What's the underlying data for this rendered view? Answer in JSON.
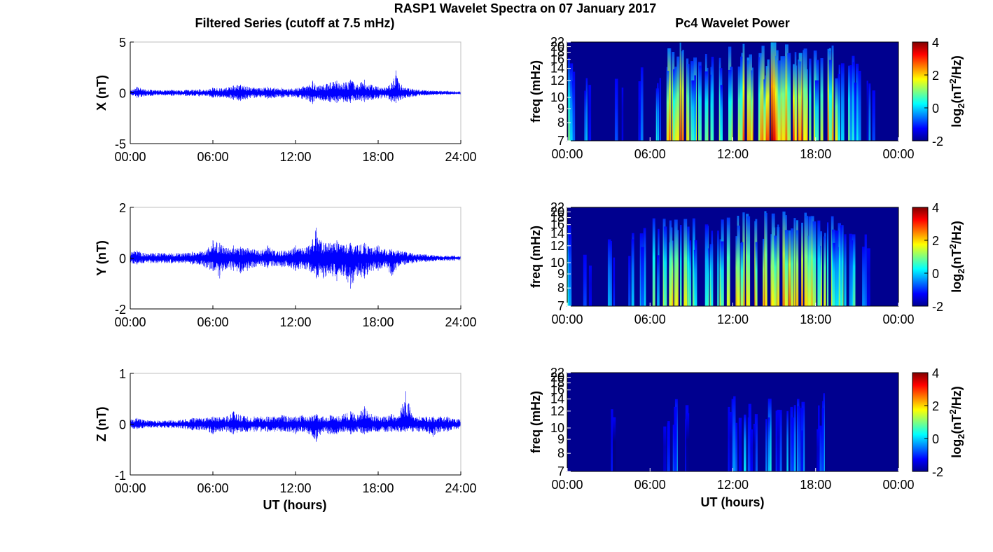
{
  "figure": {
    "title": "RASP1 Wavelet Spectra on 07 January 2017",
    "left_title": "Filtered Series (cutoff at 7.5 mHz)",
    "right_title": "Pc4 Wavelet Power",
    "x_label": "UT (hours)"
  },
  "colors": {
    "series": "#0000ff",
    "axis": "#000000",
    "box": "#bfbfbf",
    "spectrum_background": "#00008f"
  },
  "chart_data": [
    {
      "type": "line",
      "id": "x_series",
      "ylabel": "X (nT)",
      "ylim": [
        -5,
        5
      ],
      "yticks": [
        "5",
        "0",
        "-5"
      ],
      "ytick_values": [
        5,
        0,
        -5
      ],
      "xlim": [
        0,
        24
      ],
      "xtick_labels": [
        "00:00",
        "06:00",
        "12:00",
        "18:00",
        "24:00"
      ],
      "xtick_values": [
        0,
        6,
        12,
        18,
        24
      ],
      "grid": false,
      "x": [
        0,
        0.5,
        1,
        1.5,
        2,
        2.5,
        3,
        3.5,
        4,
        4.5,
        5,
        5.5,
        6,
        6.5,
        7,
        7.5,
        8,
        8.5,
        9,
        9.5,
        10,
        10.5,
        11,
        11.5,
        12,
        12.5,
        13,
        13.25,
        13.5,
        14,
        14.5,
        15,
        15.5,
        16,
        16.5,
        17,
        17.5,
        18,
        18.5,
        19,
        19.3,
        19.5,
        20,
        20.5,
        21,
        21.5,
        22,
        22.5,
        23,
        23.5,
        24
      ],
      "y_max": [
        0.3,
        0.6,
        0.35,
        0.3,
        0.25,
        0.25,
        0.3,
        0.25,
        0.3,
        0.3,
        0.35,
        0.3,
        0.5,
        0.45,
        0.5,
        0.7,
        0.8,
        0.6,
        0.5,
        0.45,
        0.6,
        0.5,
        0.5,
        0.4,
        0.45,
        0.6,
        0.8,
        1.2,
        0.6,
        0.8,
        1.0,
        1.2,
        1.0,
        1.3,
        0.8,
        1.3,
        0.8,
        0.6,
        0.5,
        1.0,
        2.2,
        1.0,
        0.5,
        0.4,
        0.3,
        0.25,
        0.2,
        0.2,
        0.2,
        0.15,
        0.15
      ],
      "y_min": [
        -0.3,
        -0.5,
        -0.35,
        -0.3,
        -0.25,
        -0.25,
        -0.3,
        -0.25,
        -0.3,
        -0.3,
        -0.35,
        -0.3,
        -0.5,
        -0.45,
        -0.5,
        -0.7,
        -0.8,
        -0.6,
        -0.5,
        -0.45,
        -0.6,
        -0.5,
        -0.5,
        -0.4,
        -0.45,
        -0.6,
        -0.8,
        -1.1,
        -0.6,
        -0.8,
        -0.9,
        -1.0,
        -0.9,
        -1.0,
        -0.7,
        -0.9,
        -0.7,
        -0.6,
        -0.5,
        -0.9,
        -1.0,
        -0.8,
        -0.5,
        -0.4,
        -0.3,
        -0.25,
        -0.2,
        -0.2,
        -0.2,
        -0.15,
        -0.15
      ]
    },
    {
      "type": "line",
      "id": "y_series",
      "ylabel": "Y (nT)",
      "ylim": [
        -2,
        2
      ],
      "yticks": [
        "2",
        "0",
        "-2"
      ],
      "ytick_values": [
        2,
        0,
        -2
      ],
      "xlim": [
        0,
        24
      ],
      "xtick_labels": [
        "00:00",
        "06:00",
        "12:00",
        "18:00",
        "24:00"
      ],
      "xtick_values": [
        0,
        6,
        12,
        18,
        24
      ],
      "grid": false,
      "x": [
        0,
        0.5,
        1,
        1.5,
        2,
        2.5,
        3,
        3.5,
        4,
        4.5,
        5,
        5.5,
        6,
        6.5,
        7,
        7.5,
        8,
        8.5,
        9,
        9.5,
        10,
        10.5,
        11,
        11.5,
        12,
        12.5,
        13,
        13.5,
        14,
        14.5,
        15,
        15.5,
        16,
        16.5,
        17,
        17.5,
        18,
        18.5,
        19,
        19.5,
        20,
        20.5,
        21,
        21.5,
        22,
        22.5,
        23,
        23.5,
        24
      ],
      "y_max": [
        0.25,
        0.3,
        0.2,
        0.2,
        0.2,
        0.2,
        0.2,
        0.2,
        0.2,
        0.25,
        0.25,
        0.3,
        0.7,
        0.6,
        0.4,
        0.5,
        0.45,
        0.4,
        0.35,
        0.3,
        0.5,
        0.3,
        0.3,
        0.3,
        0.5,
        0.4,
        0.5,
        1.2,
        0.6,
        0.6,
        0.7,
        0.5,
        0.6,
        0.5,
        0.6,
        0.4,
        0.5,
        0.35,
        0.35,
        0.3,
        0.25,
        0.2,
        0.15,
        0.15,
        0.12,
        0.1,
        0.1,
        0.1,
        0.08
      ],
      "y_min": [
        -0.2,
        -0.25,
        -0.2,
        -0.2,
        -0.2,
        -0.2,
        -0.2,
        -0.2,
        -0.2,
        -0.25,
        -0.25,
        -0.4,
        -0.5,
        -0.8,
        -0.4,
        -0.5,
        -0.6,
        -0.5,
        -0.35,
        -0.3,
        -0.4,
        -0.3,
        -0.35,
        -0.35,
        -0.5,
        -0.4,
        -0.5,
        -0.8,
        -0.8,
        -0.6,
        -0.9,
        -0.7,
        -1.2,
        -0.7,
        -0.8,
        -0.5,
        -0.5,
        -0.35,
        -0.7,
        -0.3,
        -0.25,
        -0.2,
        -0.15,
        -0.15,
        -0.12,
        -0.1,
        -0.1,
        -0.1,
        -0.08
      ]
    },
    {
      "type": "line",
      "id": "z_series",
      "ylabel": "Z (nT)",
      "ylim": [
        -1,
        1
      ],
      "yticks": [
        "1",
        "0",
        "-1"
      ],
      "ytick_values": [
        1,
        0,
        -1
      ],
      "xlim": [
        0,
        24
      ],
      "xtick_labels": [
        "00:00",
        "06:00",
        "12:00",
        "18:00",
        "24:00"
      ],
      "xtick_values": [
        0,
        6,
        12,
        18,
        24
      ],
      "grid": false,
      "x": [
        0,
        0.5,
        1,
        1.5,
        2,
        2.5,
        3,
        3.5,
        4,
        4.5,
        5,
        5.5,
        6,
        6.5,
        7,
        7.5,
        8,
        8.5,
        9,
        9.5,
        10,
        10.5,
        11,
        11.5,
        12,
        12.5,
        13,
        13.5,
        14,
        14.5,
        15,
        15.5,
        16,
        16.5,
        17,
        17.5,
        18,
        18.5,
        19,
        19.5,
        20,
        20.5,
        21,
        21.5,
        22,
        22.5,
        23,
        23.5,
        24
      ],
      "y_max": [
        0.1,
        0.12,
        0.08,
        0.07,
        0.07,
        0.07,
        0.08,
        0.08,
        0.1,
        0.12,
        0.12,
        0.12,
        0.15,
        0.14,
        0.15,
        0.25,
        0.18,
        0.15,
        0.15,
        0.15,
        0.15,
        0.15,
        0.18,
        0.15,
        0.15,
        0.18,
        0.15,
        0.2,
        0.15,
        0.18,
        0.15,
        0.2,
        0.25,
        0.18,
        0.35,
        0.2,
        0.15,
        0.15,
        0.2,
        0.15,
        0.65,
        0.15,
        0.15,
        0.15,
        0.15,
        0.15,
        0.15,
        0.1,
        0.1
      ],
      "y_min": [
        -0.08,
        -0.1,
        -0.08,
        -0.07,
        -0.07,
        -0.07,
        -0.08,
        -0.08,
        -0.1,
        -0.12,
        -0.12,
        -0.12,
        -0.2,
        -0.14,
        -0.15,
        -0.2,
        -0.15,
        -0.15,
        -0.15,
        -0.15,
        -0.15,
        -0.15,
        -0.15,
        -0.15,
        -0.2,
        -0.15,
        -0.2,
        -0.35,
        -0.15,
        -0.2,
        -0.2,
        -0.15,
        -0.2,
        -0.15,
        -0.2,
        -0.15,
        -0.15,
        -0.15,
        -0.15,
        -0.15,
        -0.15,
        -0.15,
        -0.15,
        -0.15,
        -0.25,
        -0.15,
        -0.15,
        -0.1,
        -0.1
      ]
    },
    {
      "type": "heatmap",
      "id": "x_power",
      "ylabel": "freq (mHz)",
      "ytick_labels": [
        "22",
        "20",
        "18",
        "16",
        "14",
        "12",
        "10",
        "9",
        "8",
        "7"
      ],
      "ytick_values": [
        22,
        20,
        18,
        16,
        14,
        12,
        10,
        9,
        8,
        7
      ],
      "y_scale": "reciprocal (period)",
      "xlim": [
        0,
        24
      ],
      "xtick_labels": [
        "00:00",
        "06:00",
        "12:00",
        "18:00",
        "00:00"
      ],
      "xtick_values": [
        0,
        6,
        12,
        18,
        24
      ],
      "colorbar": {
        "label": "log2(nT^2/Hz)",
        "ticks": [
          "4",
          "2",
          "0",
          "-2"
        ],
        "tick_values": [
          4,
          2,
          0,
          -2
        ],
        "range": [
          -2,
          4
        ],
        "colormap": "jet"
      },
      "bursts": [
        {
          "t": 0.2,
          "power": 1.2
        },
        {
          "t": 0.5,
          "power": 0.6
        },
        {
          "t": 1.4,
          "power": 0.2
        },
        {
          "t": 3.8,
          "power": 0.0
        },
        {
          "t": 5.2,
          "power": -0.2
        },
        {
          "t": 6.6,
          "power": 0.6
        },
        {
          "t": 7.2,
          "power": 2.0
        },
        {
          "t": 7.5,
          "power": 3.0
        },
        {
          "t": 7.8,
          "power": 2.4
        },
        {
          "t": 8.2,
          "power": 3.2
        },
        {
          "t": 8.6,
          "power": 2.8
        },
        {
          "t": 9.1,
          "power": 1.8
        },
        {
          "t": 9.5,
          "power": 1.4
        },
        {
          "t": 10.1,
          "power": 2.0
        },
        {
          "t": 10.7,
          "power": 1.6
        },
        {
          "t": 11.2,
          "power": 1.5
        },
        {
          "t": 12.0,
          "power": 2.2
        },
        {
          "t": 12.7,
          "power": 2.4
        },
        {
          "t": 13.0,
          "power": 3.5
        },
        {
          "t": 13.3,
          "power": 3.0
        },
        {
          "t": 13.8,
          "power": 2.6
        },
        {
          "t": 14.2,
          "power": 2.5
        },
        {
          "t": 14.6,
          "power": 3.8
        },
        {
          "t": 15.0,
          "power": 3.6
        },
        {
          "t": 15.4,
          "power": 2.8
        },
        {
          "t": 15.9,
          "power": 2.6
        },
        {
          "t": 16.4,
          "power": 3.0
        },
        {
          "t": 16.8,
          "power": 3.4
        },
        {
          "t": 17.3,
          "power": 2.8
        },
        {
          "t": 17.8,
          "power": 2.2
        },
        {
          "t": 18.3,
          "power": 1.8
        },
        {
          "t": 18.8,
          "power": 3.3
        },
        {
          "t": 19.3,
          "power": 2.4
        },
        {
          "t": 19.8,
          "power": 1.6
        },
        {
          "t": 20.2,
          "power": 1.2
        },
        {
          "t": 20.6,
          "power": 1.0
        },
        {
          "t": 21.0,
          "power": 0.4
        },
        {
          "t": 22.0,
          "power": -0.2
        }
      ]
    },
    {
      "type": "heatmap",
      "id": "y_power",
      "ylabel": "freq (mHz)",
      "ytick_labels": [
        "22",
        "20",
        "18",
        "16",
        "14",
        "12",
        "10",
        "9",
        "8",
        "7"
      ],
      "ytick_values": [
        22,
        20,
        18,
        16,
        14,
        12,
        10,
        9,
        8,
        7
      ],
      "y_scale": "reciprocal (period)",
      "xlim": [
        0,
        24
      ],
      "xtick_labels": [
        "00:00",
        "06:00",
        "12:00",
        "18:00",
        "00:00"
      ],
      "xtick_values": [
        0,
        6,
        12,
        18,
        24
      ],
      "colorbar": {
        "label": "log2(nT^2/Hz)",
        "ticks": [
          "4",
          "2",
          "0",
          "-2"
        ],
        "tick_values": [
          4,
          2,
          0,
          -2
        ],
        "range": [
          -2,
          4
        ],
        "colormap": "jet"
      },
      "bursts": [
        {
          "t": 0.1,
          "power": 1.0
        },
        {
          "t": 1.5,
          "power": 0.0
        },
        {
          "t": 3.2,
          "power": 0.2
        },
        {
          "t": 4.6,
          "power": 0.6
        },
        {
          "t": 5.4,
          "power": 0.4
        },
        {
          "t": 6.4,
          "power": 1.2
        },
        {
          "t": 7.2,
          "power": 2.0
        },
        {
          "t": 7.6,
          "power": 2.6
        },
        {
          "t": 8.1,
          "power": 2.2
        },
        {
          "t": 8.7,
          "power": 1.8
        },
        {
          "t": 9.4,
          "power": 1.4
        },
        {
          "t": 10.0,
          "power": 1.6
        },
        {
          "t": 10.7,
          "power": 1.2
        },
        {
          "t": 11.3,
          "power": 1.8
        },
        {
          "t": 11.8,
          "power": 2.6
        },
        {
          "t": 12.3,
          "power": 2.8
        },
        {
          "t": 12.8,
          "power": 2.4
        },
        {
          "t": 13.3,
          "power": 3.0
        },
        {
          "t": 13.8,
          "power": 2.6
        },
        {
          "t": 14.3,
          "power": 2.8
        },
        {
          "t": 14.8,
          "power": 3.0
        },
        {
          "t": 15.3,
          "power": 2.6
        },
        {
          "t": 15.8,
          "power": 2.6
        },
        {
          "t": 16.3,
          "power": 2.8
        },
        {
          "t": 16.8,
          "power": 3.2
        },
        {
          "t": 17.3,
          "power": 2.6
        },
        {
          "t": 17.8,
          "power": 2.4
        },
        {
          "t": 18.3,
          "power": 2.0
        },
        {
          "t": 18.8,
          "power": 2.2
        },
        {
          "t": 19.2,
          "power": 1.8
        },
        {
          "t": 19.7,
          "power": 1.4
        },
        {
          "t": 20.1,
          "power": 1.2
        },
        {
          "t": 20.6,
          "power": 0.8
        },
        {
          "t": 21.6,
          "power": 0.0
        }
      ]
    },
    {
      "type": "heatmap",
      "id": "z_power",
      "ylabel": "freq (mHz)",
      "ytick_labels": [
        "22",
        "20",
        "18",
        "16",
        "14",
        "12",
        "10",
        "9",
        "8",
        "7"
      ],
      "ytick_values": [
        22,
        20,
        18,
        16,
        14,
        12,
        10,
        9,
        8,
        7
      ],
      "y_scale": "reciprocal (period)",
      "xlim": [
        0,
        24
      ],
      "xtick_labels": [
        "00:00",
        "06:00",
        "12:00",
        "18:00",
        "00:00"
      ],
      "xtick_values": [
        0,
        6,
        12,
        18,
        24
      ],
      "colorbar": {
        "label": "log2(nT^2/Hz)",
        "ticks": [
          "4",
          "2",
          "0",
          "-2"
        ],
        "tick_values": [
          4,
          2,
          0,
          -2
        ],
        "range": [
          -2,
          4
        ],
        "colormap": "jet"
      },
      "bursts": [
        {
          "t": 3.3,
          "power": -0.8
        },
        {
          "t": 7.2,
          "power": -0.2
        },
        {
          "t": 7.7,
          "power": 0.0
        },
        {
          "t": 8.6,
          "power": -0.6
        },
        {
          "t": 11.8,
          "power": -0.4
        },
        {
          "t": 12.3,
          "power": -0.2
        },
        {
          "t": 13.1,
          "power": 0.2
        },
        {
          "t": 13.6,
          "power": -0.4
        },
        {
          "t": 14.6,
          "power": 0.6
        },
        {
          "t": 15.2,
          "power": -0.4
        },
        {
          "t": 16.2,
          "power": 0.2
        },
        {
          "t": 16.6,
          "power": 0.4
        },
        {
          "t": 17.2,
          "power": -0.2
        },
        {
          "t": 18.3,
          "power": -0.4
        },
        {
          "t": 18.6,
          "power": 0.2
        }
      ]
    }
  ]
}
